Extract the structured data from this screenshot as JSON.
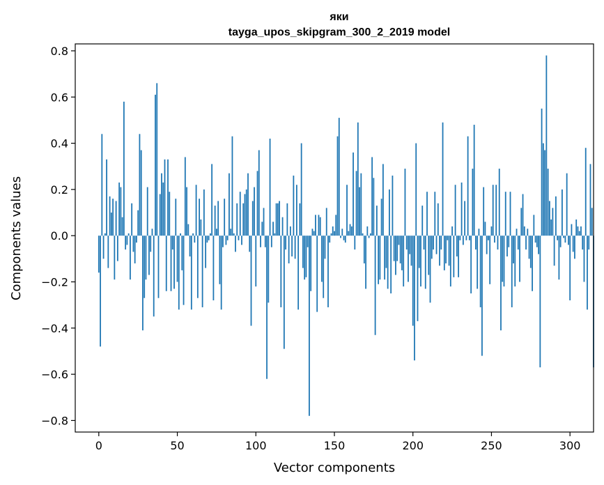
{
  "chart_data": {
    "type": "bar",
    "title": "яки",
    "subtitle": "tayga_upos_skipgram_300_2_2019 model",
    "xlabel": "Vector components",
    "ylabel": "Components values",
    "xlim": [
      -15,
      315
    ],
    "ylim": [
      -0.85,
      0.83
    ],
    "x_ticks": [
      0,
      50,
      100,
      150,
      200,
      250,
      300
    ],
    "x_tick_labels": [
      "0",
      "50",
      "100",
      "150",
      "200",
      "250",
      "300"
    ],
    "y_ticks": [
      -0.8,
      -0.6,
      -0.4,
      -0.2,
      0.0,
      0.2,
      0.4,
      0.6,
      0.8
    ],
    "y_tick_labels": [
      "−0.8",
      "−0.6",
      "−0.4",
      "−0.2",
      "0.0",
      "0.2",
      "0.4",
      "0.6",
      "0.8"
    ],
    "grid": false,
    "bar_color": "#1f77b4",
    "series": [
      {
        "name": "components",
        "values": [
          -0.16,
          -0.48,
          0.44,
          -0.1,
          0.01,
          0.33,
          -0.14,
          0.17,
          0.1,
          0.16,
          -0.19,
          0.15,
          -0.11,
          0.23,
          0.21,
          0.08,
          0.58,
          -0.06,
          -0.04,
          0.01,
          -0.19,
          0.14,
          -0.07,
          -0.12,
          -0.03,
          0.11,
          0.44,
          0.37,
          -0.41,
          -0.27,
          -0.19,
          0.21,
          -0.17,
          -0.07,
          0.03,
          -0.35,
          0.61,
          0.66,
          -0.27,
          0.18,
          0.27,
          0.23,
          0.33,
          -0.24,
          0.33,
          0.19,
          -0.24,
          -0.06,
          -0.23,
          0.16,
          -0.2,
          -0.32,
          0.01,
          -0.15,
          -0.3,
          0.34,
          0.21,
          0.05,
          -0.09,
          -0.32,
          0.01,
          -0.03,
          0.22,
          -0.27,
          0.16,
          0.07,
          -0.31,
          0.2,
          -0.14,
          -0.03,
          -0.02,
          0.01,
          0.31,
          -0.28,
          0.13,
          0.03,
          0.15,
          -0.21,
          -0.32,
          -0.05,
          0.16,
          -0.04,
          -0.02,
          0.27,
          0.03,
          0.43,
          0.01,
          -0.07,
          0.14,
          -0.02,
          0.19,
          -0.04,
          0.14,
          0.18,
          0.2,
          0.27,
          -0.07,
          -0.39,
          0.15,
          0.21,
          -0.22,
          0.28,
          0.37,
          -0.05,
          0.06,
          0.12,
          -0.05,
          -0.62,
          -0.29,
          0.42,
          -0.05,
          0.06,
          0.01,
          0.14,
          0.14,
          0.15,
          -0.31,
          0.08,
          -0.49,
          -0.06,
          0.14,
          -0.12,
          0.04,
          -0.09,
          0.26,
          -0.1,
          0.22,
          -0.32,
          0.14,
          0.4,
          -0.14,
          -0.19,
          -0.18,
          -0.05,
          -0.78,
          -0.24,
          0.03,
          0.02,
          0.09,
          -0.33,
          0.09,
          0.08,
          -0.2,
          -0.27,
          -0.1,
          0.12,
          -0.31,
          -0.03,
          0.01,
          0.04,
          0.02,
          0.09,
          0.43,
          0.51,
          -0.01,
          0.03,
          -0.02,
          -0.03,
          0.22,
          0.02,
          0.05,
          0.04,
          0.36,
          -0.06,
          0.28,
          0.49,
          0.21,
          0.27,
          0.01,
          -0.12,
          -0.23,
          0.04,
          -0.01,
          0.01,
          0.34,
          0.25,
          -0.43,
          0.13,
          -0.21,
          -0.19,
          0.16,
          0.31,
          -0.19,
          -0.14,
          -0.23,
          0.2,
          -0.25,
          0.26,
          -0.11,
          -0.17,
          -0.11,
          -0.04,
          -0.12,
          -0.15,
          -0.22,
          0.29,
          -0.06,
          -0.2,
          -0.08,
          -0.13,
          -0.39,
          -0.54,
          0.4,
          -0.37,
          -0.14,
          -0.22,
          0.13,
          -0.06,
          -0.23,
          0.19,
          -0.17,
          -0.29,
          -0.1,
          -0.06,
          0.19,
          -0.08,
          0.14,
          -0.13,
          -0.06,
          0.49,
          -0.15,
          -0.12,
          -0.02,
          -0.13,
          -0.22,
          0.04,
          -0.18,
          0.22,
          -0.09,
          -0.18,
          -0.02,
          0.23,
          -0.04,
          0.15,
          -0.02,
          0.43,
          -0.02,
          -0.25,
          0.29,
          0.48,
          -0.06,
          -0.23,
          0.03,
          -0.31,
          -0.52,
          0.21,
          0.06,
          -0.08,
          -0.02,
          -0.21,
          0.04,
          0.22,
          -0.03,
          0.22,
          -0.06,
          0.29,
          -0.41,
          -0.2,
          -0.22,
          0.19,
          -0.09,
          -0.05,
          0.19,
          -0.31,
          -0.12,
          -0.22,
          0.03,
          -0.06,
          -0.2,
          0.12,
          0.18,
          0.04,
          -0.06,
          0.03,
          -0.1,
          -0.14,
          -0.24,
          0.09,
          -0.03,
          -0.05,
          -0.08,
          -0.57,
          0.55,
          0.4,
          0.37,
          0.78,
          0.29,
          0.15,
          0.07,
          0.12,
          -0.13,
          0.17,
          -0.02,
          -0.19,
          -0.05,
          0.2,
          -0.01,
          -0.03,
          0.27,
          -0.04,
          -0.28,
          0.05,
          -0.07,
          -0.1,
          0.07,
          0.04,
          0.02,
          0.04,
          -0.06,
          -0.2,
          0.38,
          -0.32,
          -0.06,
          0.31,
          0.12,
          -0.57
        ]
      }
    ]
  }
}
